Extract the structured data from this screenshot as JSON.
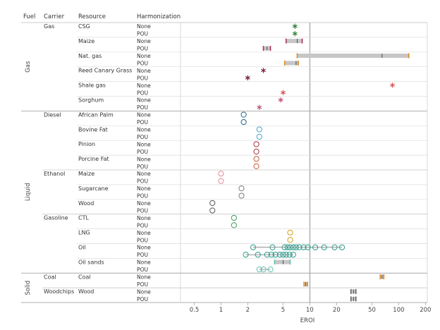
{
  "chart_data": {
    "type": "scatter",
    "xscale": "log",
    "xlim": [
      0.35,
      210
    ],
    "xlabel": "EROI",
    "xticks": [
      "0.5",
      "1",
      "2",
      "5",
      "10",
      "20",
      "50",
      "100",
      "200"
    ],
    "reference_line": 10,
    "headers": {
      "fuel": "Fuel",
      "carrier": "Carrier",
      "resource": "Resource",
      "harmonization": "Harmonization"
    },
    "harmonization_levels": [
      "None",
      "POU"
    ],
    "fuels": [
      {
        "name": "Gas",
        "carriers": [
          {
            "name": "Gas",
            "resources": [
              {
                "name": "CSG",
                "color": "#2e7d32",
                "rows": [
                  {
                    "h": "None",
                    "marker": "star",
                    "points": [
                      6.8
                    ]
                  },
                  {
                    "h": "POU",
                    "marker": "star",
                    "points": [
                      6.8
                    ]
                  }
                ]
              },
              {
                "name": "Maize",
                "color": "#b03060",
                "rows": [
                  {
                    "h": "None",
                    "marker": "box",
                    "points": [
                      5.4,
                      8.2
                    ],
                    "median": 7.2
                  },
                  {
                    "h": "POU",
                    "marker": "box",
                    "points": [
                      3.0,
                      3.6
                    ],
                    "median": 3.3
                  }
                ]
              },
              {
                "name": "Nat. gas",
                "color": "#e08a1e",
                "rows": [
                  {
                    "h": "None",
                    "marker": "box",
                    "points": [
                      7.2,
                      130
                    ],
                    "median": 65
                  },
                  {
                    "h": "POU",
                    "marker": "box",
                    "points": [
                      5.2,
                      7.4
                    ],
                    "median": 7.0
                  }
                ]
              },
              {
                "name": "Reed Canary Grass",
                "color": "#7b1f3f",
                "rows": [
                  {
                    "h": "None",
                    "marker": "star",
                    "points": [
                      3.0
                    ]
                  },
                  {
                    "h": "POU",
                    "marker": "star",
                    "points": [
                      2.0
                    ]
                  }
                ]
              },
              {
                "name": "Shale gas",
                "color": "#d9534f",
                "rows": [
                  {
                    "h": "None",
                    "marker": "star",
                    "points": [
                      85
                    ]
                  },
                  {
                    "h": "POU",
                    "marker": "star",
                    "points": [
                      5.0
                    ]
                  }
                ]
              },
              {
                "name": "Sorghum",
                "color": "#c0507a",
                "rows": [
                  {
                    "h": "None",
                    "marker": "star",
                    "points": [
                      4.7
                    ]
                  },
                  {
                    "h": "POU",
                    "marker": "star",
                    "points": [
                      2.7
                    ]
                  }
                ]
              }
            ]
          }
        ]
      },
      {
        "name": "Liquid",
        "carriers": [
          {
            "name": "Diesel",
            "resources": [
              {
                "name": "African Palm",
                "color": "#1f5f8b",
                "rows": [
                  {
                    "h": "None",
                    "marker": "circle",
                    "points": [
                      1.8
                    ]
                  },
                  {
                    "h": "POU",
                    "marker": "circle",
                    "points": [
                      1.8
                    ]
                  }
                ]
              },
              {
                "name": "Bovine Fat",
                "color": "#4a9fd0",
                "rows": [
                  {
                    "h": "None",
                    "marker": "circle",
                    "points": [
                      2.7
                    ]
                  },
                  {
                    "h": "POU",
                    "marker": "circle",
                    "points": [
                      2.7
                    ]
                  }
                ]
              },
              {
                "name": "Pinion",
                "color": "#a8323a",
                "rows": [
                  {
                    "h": "None",
                    "marker": "circle",
                    "points": [
                      2.5
                    ]
                  },
                  {
                    "h": "POU",
                    "marker": "circle",
                    "points": [
                      2.5
                    ]
                  }
                ]
              },
              {
                "name": "Porcine Fat",
                "color": "#c95c3c",
                "rows": [
                  {
                    "h": "None",
                    "marker": "circle",
                    "points": [
                      2.5
                    ]
                  },
                  {
                    "h": "POU",
                    "marker": "circle",
                    "points": [
                      2.5
                    ]
                  }
                ]
              }
            ]
          },
          {
            "name": "Ethanol",
            "resources": [
              {
                "name": "Maize",
                "color": "#e8889c",
                "rows": [
                  {
                    "h": "None",
                    "marker": "circle",
                    "points": [
                      1.0
                    ]
                  },
                  {
                    "h": "POU",
                    "marker": "circle",
                    "points": [
                      1.0
                    ]
                  }
                ]
              },
              {
                "name": "Sugarcane",
                "color": "#777777",
                "rows": [
                  {
                    "h": "None",
                    "marker": "circle",
                    "points": [
                      1.7
                    ]
                  },
                  {
                    "h": "POU",
                    "marker": "circle",
                    "points": [
                      1.7
                    ]
                  }
                ]
              },
              {
                "name": "Wood",
                "color": "#555555",
                "rows": [
                  {
                    "h": "None",
                    "marker": "circle",
                    "points": [
                      0.8
                    ]
                  },
                  {
                    "h": "POU",
                    "marker": "circle",
                    "points": [
                      0.8
                    ]
                  }
                ]
              }
            ]
          },
          {
            "name": "Gasoline",
            "resources": [
              {
                "name": "CTL",
                "color": "#3a9a5a",
                "rows": [
                  {
                    "h": "None",
                    "marker": "circle",
                    "points": [
                      1.4
                    ]
                  },
                  {
                    "h": "POU",
                    "marker": "circle",
                    "points": [
                      1.4
                    ]
                  }
                ]
              },
              {
                "name": "LNG",
                "color": "#c9a21a",
                "rows": [
                  {
                    "h": "None",
                    "marker": "circle",
                    "points": [
                      6.0
                    ]
                  },
                  {
                    "h": "POU",
                    "marker": "circle",
                    "points": [
                      6.0
                    ]
                  }
                ]
              },
              {
                "name": "Oil",
                "color": "#2a9a8a",
                "rows": [
                  {
                    "h": "None",
                    "marker": "circle",
                    "points": [
                      2.3,
                      3.8,
                      5.2,
                      5.6,
                      6.0,
                      6.5,
                      7.0,
                      7.6,
                      8.5,
                      9.5,
                      11.5,
                      14.5,
                      19.0,
                      23.0
                    ]
                  },
                  {
                    "h": "POU",
                    "marker": "circle",
                    "points": [
                      1.9,
                      2.6,
                      3.3,
                      3.7,
                      4.1,
                      4.6,
                      5.0,
                      5.4,
                      5.9,
                      6.5
                    ]
                  }
                ]
              },
              {
                "name": "Oil sands",
                "color": "#6cc0b0",
                "rows": [
                  {
                    "h": "None",
                    "marker": "box",
                    "points": [
                      4.0,
                      6.0
                    ],
                    "median": 5.0
                  },
                  {
                    "h": "POU",
                    "marker": "circle",
                    "points": [
                      2.7,
                      3.0,
                      3.6
                    ]
                  }
                ]
              }
            ]
          }
        ]
      },
      {
        "name": "Solid",
        "carriers": [
          {
            "name": "Coal",
            "resources": [
              {
                "name": "Coal",
                "color": "#e08a1e",
                "rows": [
                  {
                    "h": "None",
                    "marker": "box",
                    "points": [
                      62,
                      68
                    ],
                    "median": 65
                  },
                  {
                    "h": "POU",
                    "marker": "box",
                    "points": [
                      8.6,
                      9.4
                    ],
                    "median": 9.0
                  }
                ]
              }
            ]
          },
          {
            "name": "Woodchips",
            "resources": [
              {
                "name": "Wood",
                "color": "#666666",
                "rows": [
                  {
                    "h": "None",
                    "marker": "box",
                    "points": [
                      29,
                      33
                    ],
                    "median": 31
                  },
                  {
                    "h": "POU",
                    "marker": "box",
                    "points": [
                      29,
                      33
                    ],
                    "median": 31
                  }
                ]
              }
            ]
          }
        ]
      }
    ]
  }
}
